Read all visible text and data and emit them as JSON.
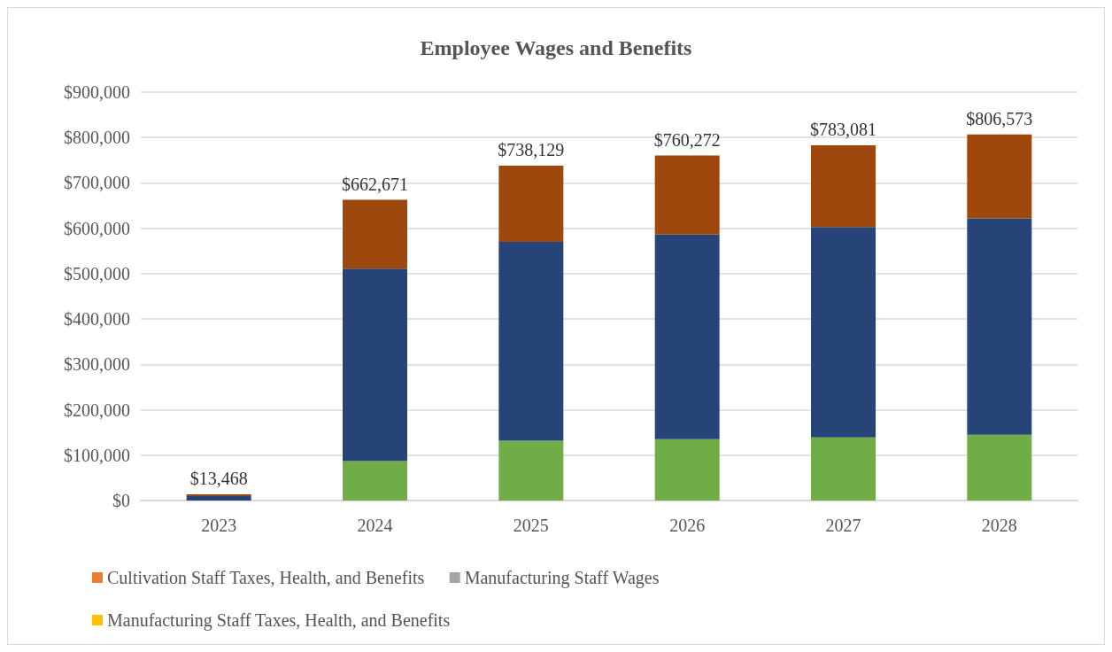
{
  "chart_data": {
    "type": "bar",
    "title": "Employee Wages and Benefits",
    "stacked": true,
    "categories": [
      "2023",
      "2024",
      "2025",
      "2026",
      "2027",
      "2028"
    ],
    "series": [
      {
        "color": "#70ad47",
        "values": [
          0,
          87000,
          132000,
          135000,
          139000,
          145000
        ]
      },
      {
        "color": "#264478",
        "values": [
          10000,
          424000,
          438000,
          451000,
          464000,
          477000
        ]
      },
      {
        "color": "#9e480e",
        "values": [
          3468,
          151671,
          168129,
          174272,
          180081,
          184573
        ]
      },
      {
        "name": "Cultivation Staff Taxes, Health, and Benefits",
        "color": "#ed7d31",
        "values": [
          null,
          null,
          null,
          null,
          null,
          null
        ]
      },
      {
        "name": "Manufacturing Staff Wages",
        "color": "#a5a5a5",
        "values": [
          null,
          null,
          null,
          null,
          null,
          null
        ]
      },
      {
        "name": "Manufacturing Staff Taxes, Health, and Benefits",
        "color": "#ffc000",
        "values": [
          null,
          null,
          null,
          null,
          null,
          null
        ]
      }
    ],
    "totals": [
      "$13,468",
      "$662,671",
      "$738,129",
      "$760,272",
      "$783,081",
      "$806,573"
    ],
    "ylim": [
      0,
      900000
    ],
    "yticks": [
      {
        "value": 0,
        "label": "$0"
      },
      {
        "value": 100000,
        "label": "$100,000"
      },
      {
        "value": 200000,
        "label": "$200,000"
      },
      {
        "value": 300000,
        "label": "$300,000"
      },
      {
        "value": 400000,
        "label": "$400,000"
      },
      {
        "value": 500000,
        "label": "$500,000"
      },
      {
        "value": 600000,
        "label": "$600,000"
      },
      {
        "value": 700000,
        "label": "$700,000"
      },
      {
        "value": 800000,
        "label": "$800,000"
      },
      {
        "value": 900000,
        "label": "$900,000"
      }
    ],
    "grid": "y",
    "legend": "bottom"
  }
}
